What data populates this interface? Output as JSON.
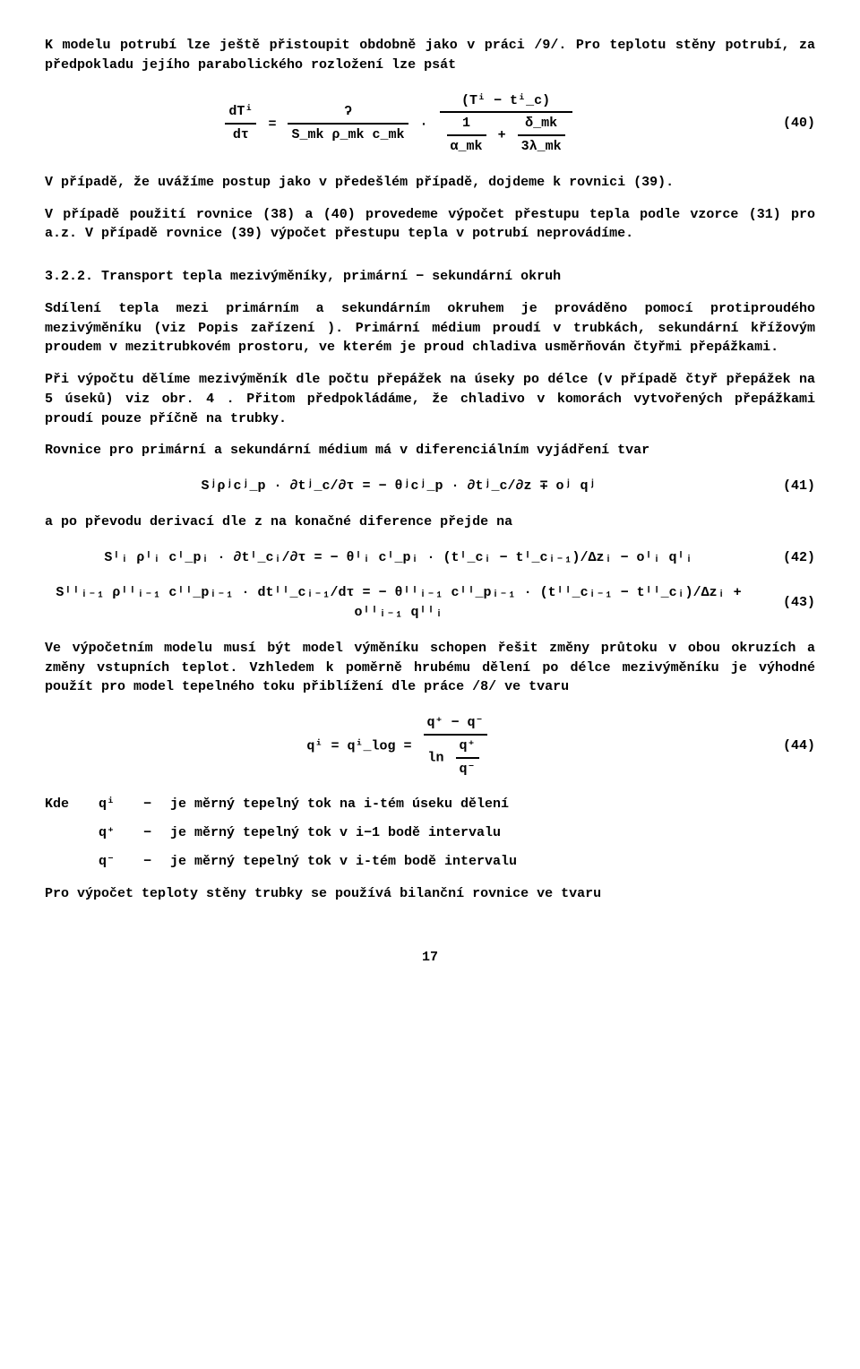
{
  "p1": "K modelu potrubí lze ještě přistoupit obdobně jako v práci /9/. Pro teplotu stěny potrubí, za předpokladu jejího parabolického rozložení lze psát",
  "eq40": {
    "lhs_num": "dTⁱ",
    "lhs_den": "dτ",
    "mid_num": "ʔ",
    "mid_den": "S_mk ρ_mk c_mk",
    "rhs_top_num": "(Tⁱ − tⁱ_c)",
    "rhs_bot_left_num": "1",
    "rhs_bot_left_den": "α_mk",
    "rhs_bot_right_num": "δ_mk",
    "rhs_bot_right_den": "3λ_mk",
    "num": "(40)"
  },
  "p2": "V případě, že uvážíme postup jako v předešlém případě, dojdeme k rovnici (39).",
  "p3": "V případě použití rovnice (38) a (40) provedeme výpočet přestupu tepla podle vzorce (31) pro a.z.  V případě rovnice (39) výpočet přestupu tepla v potrubí neprovádíme.",
  "sec322": "3.2.2. Transport tepla mezivýměníky, primární − sekundární okruh",
  "p4": "Sdílení tepla mezi primárním a sekundárním okruhem je prováděno pomocí protiproudého mezivýměníku (viz  Popis zařízení ). Primární médium proudí v trubkách, sekundární křížovým proudem v mezitrubkovém prostoru, ve kterém je proud chladiva usměrňován čtyřmi přepážkami.",
  "p5": "Při výpočtu dělíme mezivýměník dle počtu přepážek na úseky po délce (v případě čtyř přepážek na 5 úseků) viz obr. 4 . Přitom předpokládáme, že chladivo v komorách vytvořených přepážkami proudí pouze příčně na trubky.",
  "p6": "Rovnice pro primární a sekundární médium má v diferenciálním vyjádření tvar",
  "eq41": {
    "text": "Sʲρʲcʲ_p · ∂tʲ_c/∂τ  =  − θʲcʲ_p · ∂tʲ_c/∂z  ∓  oʲ qʲ",
    "num": "(41)"
  },
  "p7": "a po převodu derivací dle  z  na konačné diference přejde na",
  "eq42": {
    "text": "Sᴵᵢ ρᴵᵢ cᴵ_pᵢ · ∂tᴵ_cᵢ/∂τ  =  − θᴵᵢ cᴵ_pᵢ · (tᴵ_cᵢ − tᴵ_cᵢ₋₁)/Δzᵢ  −  oᴵᵢ qᴵᵢ",
    "num": "(42)"
  },
  "eq43": {
    "text": "Sᴵᴵᵢ₋₁ ρᴵᴵᵢ₋₁ cᴵᴵ_pᵢ₋₁ · dtᴵᴵ_cᵢ₋₁/dτ  =  − θᴵᴵᵢ₋₁ cᴵᴵ_pᵢ₋₁ · (tᴵᴵ_cᵢ₋₁ − tᴵᴵ_cᵢ)/Δzᵢ  +  oᴵᴵᵢ₋₁ qᴵᴵᵢ",
    "num": "(43)"
  },
  "p8": "Ve výpočetním modelu musí být model výměníku schopen řešit změny průtoku v obou okruzích a změny vstupních teplot. Vzhledem k poměrně hrubému dělení po délce mezivýměníku je výhodné použít pro model tepelného toku přiblížení dle práce /8/ ve tvaru",
  "eq44": {
    "lhs": "qⁱ = qⁱ_log =",
    "top_num": "q⁺ − q⁻",
    "bot_ln": "ln",
    "bot_num": "q⁺",
    "bot_den": "q⁻",
    "num": "(44)"
  },
  "where_label": "Kde",
  "where": [
    {
      "sym": "qⁱ",
      "dash": "−",
      "def": "je měrný tepelný tok na i-tém úseku dělení"
    },
    {
      "sym": "q⁺",
      "dash": "−",
      "def": "je měrný tepelný tok v  i−1  bodě intervalu"
    },
    {
      "sym": "q⁻",
      "dash": "−",
      "def": "je měrný tepelný tok v  i-tém  bodě intervalu"
    }
  ],
  "p9": "Pro výpočet teploty stěny trubky se používá bilanční rovnice ve tvaru",
  "page_number": "17"
}
